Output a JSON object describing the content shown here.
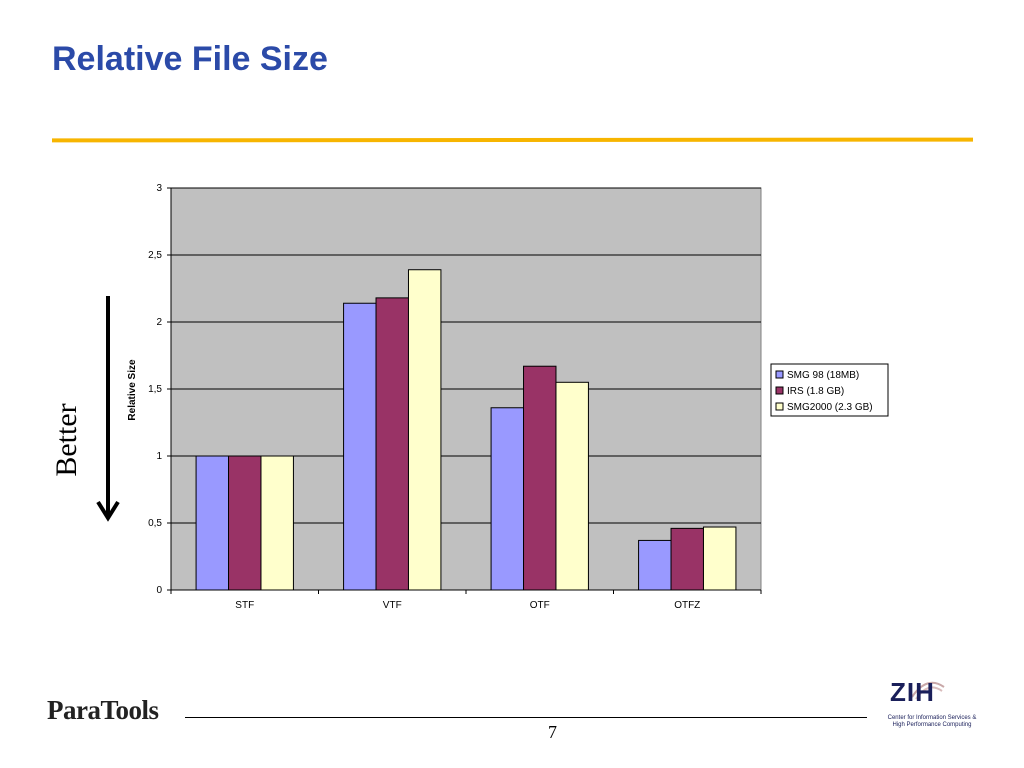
{
  "slide": {
    "title": "Relative File Size",
    "better_label": "Better",
    "page_number": "7",
    "logo_left": "ParaTools",
    "logo_right": {
      "name": "ZIH",
      "line1": "Center for Information Services &",
      "line2": "High Performance Computing"
    }
  },
  "colors": {
    "title": "#2b4aa8",
    "rule": "#f7b500",
    "plot_background": "#c0c0c0"
  },
  "chart_data": {
    "type": "bar",
    "title": "",
    "xlabel": "",
    "ylabel": "Relative Size",
    "categories": [
      "STF",
      "VTF",
      "OTF",
      "OTFZ"
    ],
    "ylim": [
      0,
      3
    ],
    "yticks": [
      "0",
      "0,5",
      "1",
      "1,5",
      "2",
      "2,5",
      "3"
    ],
    "grid": true,
    "legend_position": "right",
    "series": [
      {
        "name": "SMG 98 (18MB)",
        "color": "#9999ff",
        "values": [
          1,
          2.14,
          1.36,
          0.37
        ]
      },
      {
        "name": "IRS (1.8 GB)",
        "color": "#993366",
        "values": [
          1,
          2.18,
          1.67,
          0.46
        ]
      },
      {
        "name": "SMG2000 (2.3 GB)",
        "color": "#ffffcc",
        "values": [
          1,
          2.39,
          1.55,
          0.47
        ]
      }
    ]
  }
}
